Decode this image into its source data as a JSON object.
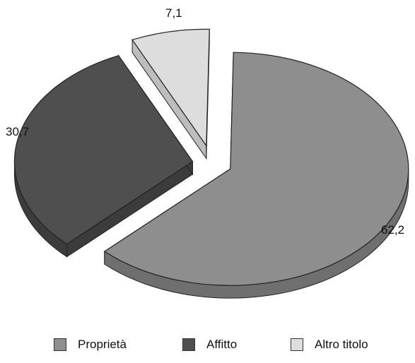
{
  "chart_data": {
    "type": "pie",
    "title": "",
    "categories": [
      "Proprietà",
      "Affitto",
      "Altro titolo"
    ],
    "values": [
      62.2,
      30.7,
      7.1
    ],
    "labels": [
      "62,2",
      "30,7",
      "7,1"
    ],
    "colors": [
      "#8e8e8e",
      "#4f4f4f",
      "#dddddd"
    ],
    "side_colors": [
      "#6f6f6f",
      "#3c3c3c",
      "#bdbdbd"
    ],
    "exploded": true,
    "three_d": true,
    "legend_position": "bottom"
  }
}
